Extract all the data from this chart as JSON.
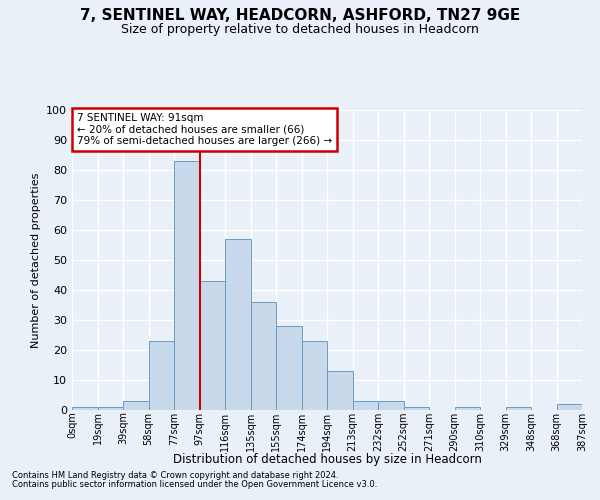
{
  "title": "7, SENTINEL WAY, HEADCORN, ASHFORD, TN27 9GE",
  "subtitle": "Size of property relative to detached houses in Headcorn",
  "xlabel": "Distribution of detached houses by size in Headcorn",
  "ylabel": "Number of detached properties",
  "bar_color": "#c9d9ec",
  "bar_edge_color": "#6a9cc0",
  "background_color": "#eaf0f8",
  "grid_color": "#ffffff",
  "fig_background": "#eaf0f8",
  "bin_labels": [
    "0sqm",
    "19sqm",
    "39sqm",
    "58sqm",
    "77sqm",
    "97sqm",
    "116sqm",
    "135sqm",
    "155sqm",
    "174sqm",
    "194sqm",
    "213sqm",
    "232sqm",
    "252sqm",
    "271sqm",
    "290sqm",
    "310sqm",
    "329sqm",
    "348sqm",
    "368sqm",
    "387sqm"
  ],
  "bar_values": [
    1,
    1,
    3,
    23,
    83,
    43,
    57,
    36,
    28,
    23,
    13,
    3,
    3,
    1,
    0,
    1,
    0,
    1,
    0,
    2
  ],
  "ylim": [
    0,
    100
  ],
  "yticks": [
    0,
    10,
    20,
    30,
    40,
    50,
    60,
    70,
    80,
    90,
    100
  ],
  "red_line_bin": 5,
  "annotation_text": "7 SENTINEL WAY: 91sqm\n← 20% of detached houses are smaller (66)\n79% of semi-detached houses are larger (266) →",
  "annotation_box_color": "#ffffff",
  "annotation_box_edge_color": "#cc0000",
  "footnote1": "Contains HM Land Registry data © Crown copyright and database right 2024.",
  "footnote2": "Contains public sector information licensed under the Open Government Licence v3.0."
}
